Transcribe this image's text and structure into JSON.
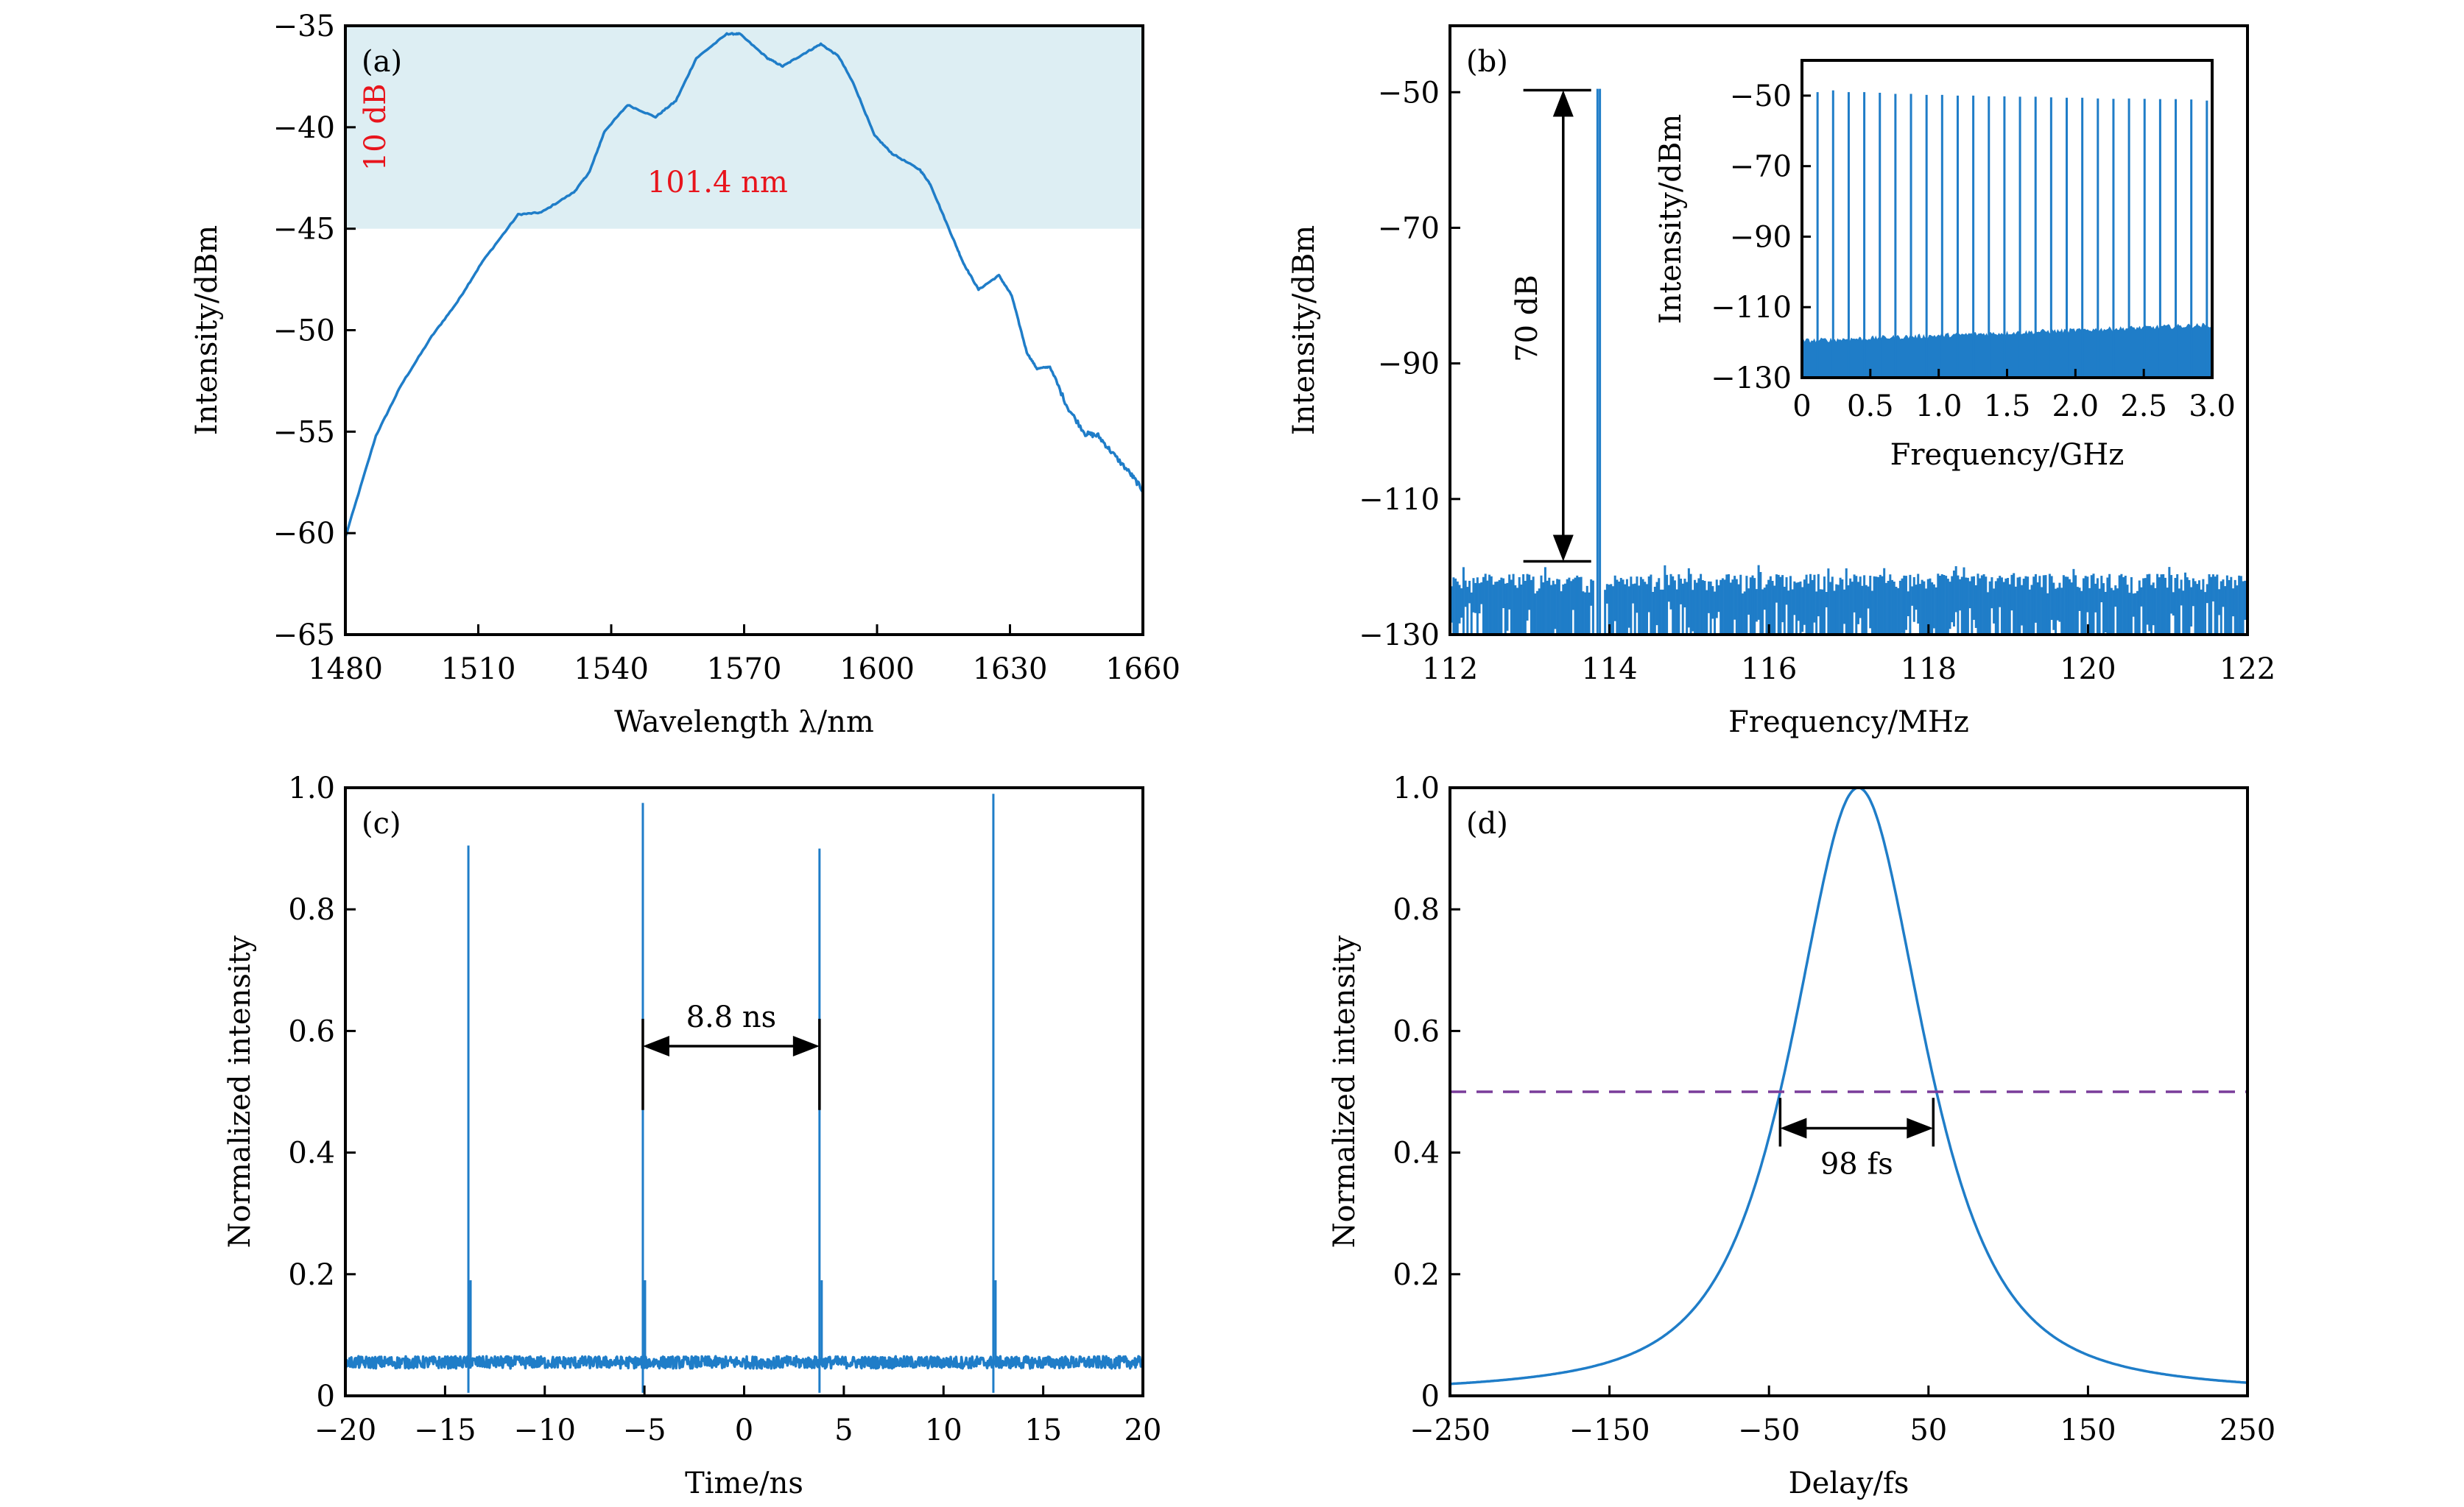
{
  "chart_data": [
    {
      "id": "a",
      "type": "line",
      "panel_label": "(a)",
      "xlabel": "Wavelength λ/nm",
      "ylabel": "Intensity/dBm",
      "xlim": [
        1480,
        1660
      ],
      "ylim": [
        -65,
        -35
      ],
      "xticks": [
        1480,
        1510,
        1540,
        1570,
        1600,
        1630,
        1660
      ],
      "xtick_labels": [
        "1480",
        "1510",
        "1540",
        "1570",
        "1600",
        "1630",
        "1660"
      ],
      "yticks": [
        -65,
        -60,
        -55,
        -50,
        -45,
        -40,
        -35
      ],
      "ytick_labels": [
        "−65",
        "−60",
        "−55",
        "−50",
        "−45",
        "−40",
        "−35"
      ],
      "grid": false,
      "shaded_band": {
        "y_from": -45,
        "y_to": -35,
        "color": "#ddeef3"
      },
      "annotations": [
        {
          "text": "10 dB",
          "x": 1489,
          "y": -40,
          "rotation": "vertical",
          "color": "#e8141c"
        },
        {
          "text": "101.4 nm",
          "x": 1564,
          "y": -43.2,
          "color": "#e8141c"
        }
      ],
      "series": [
        {
          "name": "spectrum",
          "color": "#1f7dc8",
          "x": [
            1480,
            1486.9,
            1492.6,
            1499.5,
            1505.3,
            1511,
            1519,
            1524.2,
            1531.6,
            1535.1,
            1538.5,
            1543.7,
            1550,
            1554.6,
            1559.2,
            1566.1,
            1569,
            1575.3,
            1578.7,
            1583.3,
            1587.3,
            1591.3,
            1594.8,
            1599.4,
            1603.4,
            1609.7,
            1612,
            1616.6,
            1619.5,
            1622.9,
            1627.5,
            1630.4,
            1633.8,
            1636.1,
            1639,
            1643,
            1647,
            1649.9,
            1653.3,
            1657.3,
            1660
          ],
          "y": [
            -60.2,
            -55.2,
            -52.7,
            -50.3,
            -48.6,
            -46.6,
            -44.3,
            -44.2,
            -43.2,
            -42.2,
            -40.2,
            -38.9,
            -39.5,
            -38.7,
            -36.6,
            -35.4,
            -35.4,
            -36.6,
            -37.0,
            -36.4,
            -35.9,
            -36.5,
            -37.9,
            -40.4,
            -41.3,
            -42.1,
            -42.8,
            -45.2,
            -46.7,
            -48.0,
            -47.3,
            -48.3,
            -51.1,
            -51.9,
            -51.8,
            -53.8,
            -55.1,
            -55.2,
            -56.1,
            -57.1,
            -57.9
          ]
        }
      ]
    },
    {
      "id": "b",
      "type": "line",
      "panel_label": "(b)",
      "xlabel": "Frequency/MHz",
      "ylabel": "Intensity/dBm",
      "xlim": [
        112,
        122
      ],
      "ylim": [
        -130,
        -40.2
      ],
      "xticks": [
        112,
        114,
        116,
        118,
        120,
        122
      ],
      "xtick_labels": [
        "112",
        "114",
        "116",
        "118",
        "120",
        "122"
      ],
      "yticks": [
        -130,
        -110,
        -90,
        -70,
        -50
      ],
      "ytick_labels": [
        "−130",
        "−110",
        "−90",
        "−70",
        "−50"
      ],
      "grid": false,
      "series": [
        {
          "name": "RF spectrum",
          "color": "#1f7dc8",
          "peak_frequency_MHz": [
            113.85,
            113.88
          ],
          "peak_dBm": -49.5,
          "noise_floor_dBm": [
            -124,
            -121
          ]
        }
      ],
      "annotations": [
        {
          "text": "70 dB",
          "type": "double-arrow-vertical",
          "x": 113.42,
          "y_from": -119.2,
          "y_to": -49.7,
          "bar_x": [
            112.92,
            113.77
          ]
        }
      ],
      "inset": {
        "type": "line",
        "xlabel": "Frequency/GHz",
        "ylabel": "Intensity/dBm",
        "xlim": [
          0,
          3.0
        ],
        "ylim": [
          -130,
          -40
        ],
        "xticks": [
          0,
          0.5,
          1.0,
          1.5,
          2.0,
          2.5,
          3.0
        ],
        "xtick_labels": [
          "0",
          "0.5",
          "1.0",
          "1.5",
          "2.0",
          "2.5",
          "3.0"
        ],
        "yticks": [
          -130,
          -110,
          -90,
          -70,
          -50
        ],
        "ytick_labels": [
          "−130",
          "−110",
          "−90",
          "−70",
          "−50"
        ],
        "comb_spacing_GHz": 0.1139,
        "comb_lines_count": 26,
        "comb_peak_dBm": [
          -49.0,
          -48.5,
          -49.0,
          -49.0,
          -49.2,
          -49.5,
          -49.5,
          -49.8,
          -49.8,
          -50.0,
          -50.0,
          -50.2,
          -50.2,
          -50.3,
          -50.3,
          -50.5,
          -50.6,
          -50.6,
          -50.8,
          -50.9,
          -50.8,
          -50.9,
          -51.0,
          -51.0,
          -51.1,
          -51.4
        ],
        "noise_floor_dBm": {
          "start": -119.5,
          "end": -115.0
        }
      }
    },
    {
      "id": "c",
      "type": "line",
      "panel_label": "(c)",
      "xlabel": "Time/ns",
      "ylabel": "Normalized intensity",
      "xlim": [
        -20,
        20
      ],
      "ylim": [
        0,
        1.0
      ],
      "xticks": [
        -20,
        -15,
        -10,
        -5,
        0,
        5,
        10,
        15,
        20
      ],
      "xtick_labels": [
        "−20",
        "−15",
        "−10",
        "−5",
        "0",
        "5",
        "10",
        "15",
        "20"
      ],
      "yticks": [
        0,
        0.2,
        0.4,
        0.6,
        0.8,
        1.0
      ],
      "ytick_labels": [
        "0",
        "0.2",
        "0.4",
        "0.6",
        "0.8",
        "1.0"
      ],
      "grid": false,
      "series": [
        {
          "name": "pulse train",
          "color": "#1f7dc8",
          "pulse_times_ns": [
            -13.83,
            -5.08,
            3.78,
            12.5
          ],
          "pulse_peaks": [
            0.905,
            0.975,
            0.9,
            0.99
          ],
          "baseline": 0.055,
          "baseline_noise": 0.02
        }
      ],
      "annotations": [
        {
          "text": "8.8 ns",
          "type": "double-arrow-horizontal",
          "x_from": -5.08,
          "x_to": 3.78,
          "y": 0.575,
          "tick_y": [
            0.47,
            0.62
          ]
        }
      ]
    },
    {
      "id": "d",
      "type": "line",
      "panel_label": "(d)",
      "xlabel": "Delay/fs",
      "ylabel": "Normalized intensity",
      "xlim": [
        -250,
        250
      ],
      "ylim": [
        0,
        1.0
      ],
      "xticks": [
        -250,
        -150,
        -50,
        50,
        150,
        250
      ],
      "xtick_labels": [
        "−250",
        "−150",
        "−50",
        "50",
        "150",
        "250"
      ],
      "yticks": [
        0,
        0.2,
        0.4,
        0.6,
        0.8,
        1.0
      ],
      "ytick_labels": [
        "0",
        "0.2",
        "0.4",
        "0.6",
        "0.8",
        "1.0"
      ],
      "grid": false,
      "series": [
        {
          "name": "autocorrelation",
          "color": "#1f7dc8",
          "shape": "sech2",
          "center_fs": 6,
          "fwhm_fs": 98,
          "peak": 1.0,
          "edge_value": 0.01
        }
      ],
      "reference_line": {
        "y": 0.5,
        "style": "dashed",
        "color": "#7a3c9a"
      },
      "annotations": [
        {
          "text": "98 fs",
          "type": "double-arrow-horizontal",
          "x_from": -43,
          "x_to": 53,
          "y": 0.44,
          "tick_y": [
            0.41,
            0.49
          ]
        }
      ]
    }
  ]
}
